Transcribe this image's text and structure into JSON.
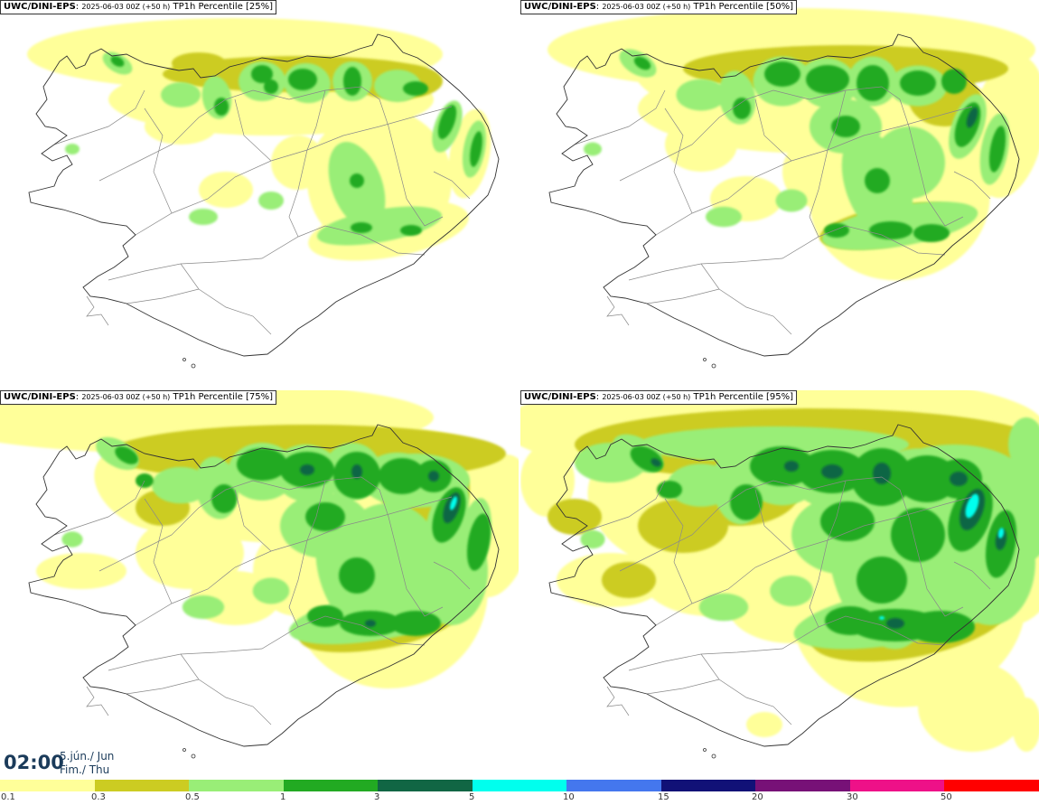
{
  "panels": [
    {
      "model": "UWC/DINI-EPS",
      "run": "2025-06-03 00Z (+50 h)",
      "product": "TP1h Percentile [25%]"
    },
    {
      "model": "UWC/DINI-EPS",
      "run": "2025-06-03 00Z (+50 h)",
      "product": "TP1h Percentile [50%]"
    },
    {
      "model": "UWC/DINI-EPS",
      "run": "2025-06-03 00Z (+50 h)",
      "product": "TP1h Percentile [75%]"
    },
    {
      "model": "UWC/DINI-EPS",
      "run": "2025-06-03 00Z (+50 h)",
      "product": "TP1h Percentile [95%]"
    }
  ],
  "valid_time": {
    "time": "02:00",
    "date_line1": "5.jún./ Jun",
    "date_line2": "Fim./ Thu"
  },
  "colorbar": {
    "labels": [
      "0.1",
      "0.3",
      "0.5",
      "1",
      "3",
      "5",
      "10",
      "15",
      "20",
      "30",
      "50"
    ],
    "colors": [
      "#ffff99",
      "#cccc22",
      "#99ee77",
      "#22aa22",
      "#116644",
      "#00ffee",
      "#4477ee",
      "#111177",
      "#771177",
      "#ee1188",
      "#ff0000"
    ]
  }
}
